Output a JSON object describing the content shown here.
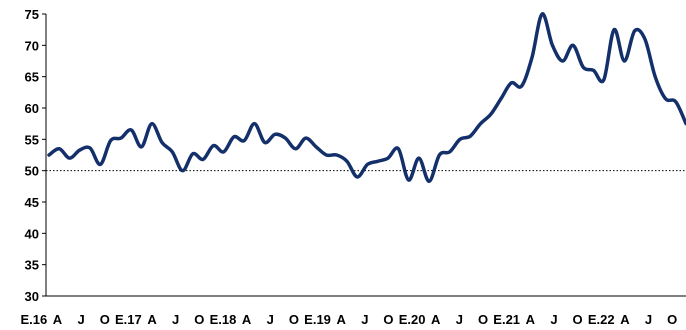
{
  "chart_data": {
    "type": "line",
    "title": "",
    "xlabel": "",
    "ylabel": "",
    "ylim": [
      30,
      75
    ],
    "yticks": [
      30,
      35,
      40,
      45,
      50,
      55,
      60,
      65,
      70,
      75
    ],
    "x_tick_labels": [
      "E.16",
      "A",
      "J",
      "O",
      "E.17",
      "A",
      "J",
      "O",
      "E.18",
      "A",
      "J",
      "O",
      "E.19",
      "A",
      "J",
      "O",
      "E.20",
      "A",
      "J",
      "O",
      "E.21",
      "A",
      "J",
      "O",
      "E.22",
      "A",
      "J",
      "O"
    ],
    "reference_line": {
      "y": 50,
      "style": "dotted"
    },
    "grid": false,
    "legend": "none",
    "line_color": "#14306b",
    "series": [
      {
        "values": [
          52.5,
          53.5,
          52.0,
          53.3,
          53.6,
          51.0,
          54.8,
          55.2,
          56.5,
          53.8,
          57.5,
          54.5,
          53.0,
          50.0,
          52.7,
          51.8,
          54.0,
          53.0,
          55.4,
          54.8,
          57.5,
          54.5,
          55.8,
          55.2,
          53.5,
          55.2,
          53.8,
          52.5,
          52.5,
          51.5,
          49.0,
          51.0,
          51.5,
          52.0,
          53.5,
          48.5,
          52.0,
          48.3,
          52.5,
          53.0,
          55.0,
          55.5,
          57.5,
          59.0,
          61.5,
          64.0,
          63.5,
          68.0,
          75.0,
          70.0,
          67.5,
          70.0,
          66.5,
          66.0,
          64.5,
          72.5,
          67.5,
          72.3,
          71.0,
          65.0,
          61.5,
          61.0,
          57.5
        ]
      }
    ]
  }
}
